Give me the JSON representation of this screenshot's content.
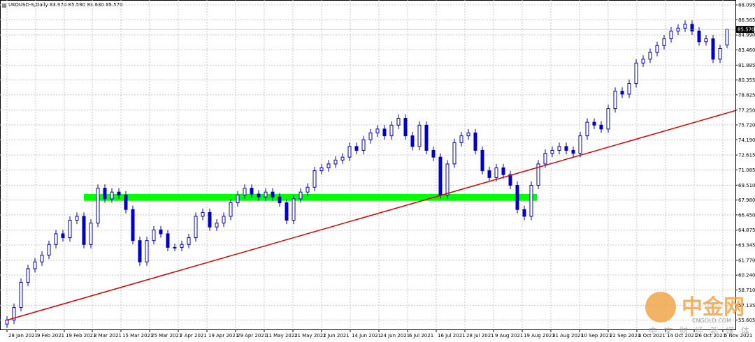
{
  "chart_data": {
    "type": "candlestick",
    "title": "UKOUSD-S,Daily 83.970 85.590 83.630 85.570",
    "open": [
      55.2,
      55.6,
      56.9,
      59.5,
      60.9,
      61.6,
      62.3,
      63.4,
      64.5,
      64.1,
      65.9,
      66.3,
      63.4,
      65.6,
      69.2,
      68.1,
      68.8,
      68.5,
      67.0,
      63.8,
      61.6,
      63.8,
      64.9,
      64.5,
      63.1,
      63.1,
      63.4,
      64.1,
      66.3,
      66.7,
      65.2,
      65.6,
      66.3,
      67.7,
      68.5,
      69.2,
      68.6,
      68.3,
      68.8,
      68.3,
      67.7,
      65.9,
      68.1,
      68.8,
      69.3,
      71.0,
      71.3,
      71.7,
      72.1,
      72.4,
      73.5,
      73.1,
      74.2,
      74.9,
      75.3,
      74.6,
      75.7,
      76.4,
      74.6,
      73.5,
      75.7,
      73.1,
      72.4,
      68.5,
      71.7,
      73.9,
      74.6,
      74.9,
      73.1,
      71.0,
      70.3,
      71.3,
      70.6,
      69.5,
      67.0,
      66.3,
      69.5,
      71.7,
      72.8,
      73.1,
      73.5,
      73.1,
      72.8,
      74.6,
      76.0,
      75.7,
      75.3,
      77.4,
      79.2,
      78.9,
      80.0,
      82.1,
      82.5,
      83.2,
      83.9,
      84.6,
      85.4,
      85.7,
      86.1,
      85.4,
      84.3,
      84.6,
      82.5,
      83.97
    ],
    "high": [
      56.0,
      57.3,
      59.9,
      61.3,
      62.0,
      62.7,
      63.8,
      64.9,
      64.9,
      66.3,
      66.7,
      66.7,
      66.0,
      69.6,
      69.6,
      69.2,
      69.2,
      68.9,
      67.4,
      64.2,
      64.2,
      65.3,
      65.3,
      64.9,
      63.5,
      63.8,
      64.5,
      66.7,
      67.1,
      67.1,
      66.0,
      66.7,
      68.1,
      68.9,
      69.6,
      69.6,
      69.0,
      69.2,
      69.2,
      68.7,
      68.1,
      68.5,
      69.2,
      69.7,
      71.4,
      71.7,
      72.1,
      72.5,
      72.8,
      73.9,
      73.9,
      74.6,
      75.3,
      75.7,
      75.7,
      76.1,
      76.8,
      76.8,
      75.0,
      76.1,
      76.1,
      73.5,
      72.8,
      72.1,
      74.3,
      75.0,
      75.3,
      75.3,
      73.5,
      71.4,
      71.7,
      71.7,
      71.0,
      69.9,
      67.4,
      69.9,
      72.1,
      73.2,
      73.5,
      73.9,
      73.9,
      73.5,
      75.0,
      76.4,
      76.4,
      76.1,
      77.8,
      79.6,
      79.6,
      80.4,
      82.5,
      82.9,
      83.6,
      84.3,
      85.0,
      85.8,
      86.1,
      86.5,
      86.5,
      85.8,
      85.0,
      85.0,
      84.0,
      85.59
    ],
    "low": [
      54.8,
      55.2,
      56.5,
      59.1,
      60.5,
      61.2,
      61.9,
      63.0,
      63.7,
      63.7,
      65.5,
      63.0,
      63.0,
      65.2,
      67.7,
      67.7,
      68.1,
      66.6,
      63.4,
      61.2,
      61.2,
      63.4,
      64.1,
      62.7,
      62.7,
      62.7,
      63.0,
      63.7,
      65.9,
      64.8,
      64.8,
      65.2,
      65.9,
      67.3,
      68.1,
      68.2,
      67.9,
      67.9,
      67.9,
      67.3,
      65.5,
      65.5,
      67.7,
      68.4,
      68.9,
      70.6,
      70.9,
      71.3,
      71.7,
      72.0,
      72.7,
      72.7,
      73.8,
      74.5,
      74.2,
      74.2,
      75.3,
      74.2,
      73.1,
      73.1,
      72.7,
      72.0,
      68.1,
      68.1,
      71.3,
      73.5,
      74.2,
      72.7,
      70.6,
      69.9,
      69.9,
      70.2,
      69.1,
      66.6,
      65.9,
      65.9,
      69.1,
      71.3,
      72.4,
      72.7,
      72.7,
      72.4,
      72.4,
      74.2,
      75.3,
      74.9,
      74.9,
      77.0,
      78.5,
      78.5,
      79.6,
      81.7,
      82.1,
      82.8,
      83.5,
      84.2,
      85.0,
      85.3,
      85.0,
      83.9,
      83.9,
      82.1,
      82.1,
      83.63
    ],
    "close": [
      55.6,
      56.9,
      59.5,
      60.9,
      61.6,
      62.3,
      63.4,
      64.5,
      64.1,
      65.9,
      66.3,
      63.4,
      65.6,
      69.2,
      68.1,
      68.8,
      68.5,
      67.0,
      63.8,
      61.6,
      63.8,
      64.9,
      64.5,
      63.1,
      63.1,
      63.4,
      64.1,
      66.3,
      66.7,
      65.2,
      65.6,
      66.3,
      67.7,
      68.5,
      69.2,
      68.6,
      68.3,
      68.8,
      68.3,
      67.7,
      65.9,
      68.1,
      68.8,
      69.3,
      71.0,
      71.3,
      71.7,
      72.1,
      72.4,
      73.5,
      73.1,
      74.2,
      74.9,
      75.3,
      74.6,
      75.7,
      76.4,
      74.6,
      73.5,
      75.7,
      73.1,
      72.4,
      68.5,
      71.7,
      73.9,
      74.6,
      74.9,
      73.1,
      71.0,
      70.3,
      71.3,
      70.6,
      69.5,
      67.0,
      66.3,
      69.5,
      71.7,
      72.8,
      73.1,
      73.5,
      73.1,
      72.8,
      74.6,
      76.0,
      75.7,
      75.3,
      77.4,
      79.2,
      78.9,
      80.0,
      82.1,
      82.5,
      83.2,
      83.9,
      84.6,
      85.4,
      85.7,
      86.1,
      85.4,
      84.3,
      84.6,
      82.5,
      83.6,
      85.57
    ],
    "color": "#0000c8",
    "xlim": [
      -1,
      104.2
    ],
    "xticks": [
      {
        "value": 0,
        "label": "28 Jan 2021"
      },
      {
        "value": 4.1,
        "label": "9 Feb 2021"
      },
      {
        "value": 8.2,
        "label": "19 Feb 2021"
      },
      {
        "value": 12.2,
        "label": "3 Mar 2021"
      },
      {
        "value": 16.3,
        "label": "15 Mar 2021"
      },
      {
        "value": 20.4,
        "label": "25 Mar 2021"
      },
      {
        "value": 24.5,
        "label": "7 Apr 2021"
      },
      {
        "value": 28.6,
        "label": "19 Apr 2021"
      },
      {
        "value": 32.7,
        "label": "29 Apr 2021"
      },
      {
        "value": 36.8,
        "label": "11 May 2021"
      },
      {
        "value": 40.9,
        "label": "21 May 2021"
      },
      {
        "value": 45.0,
        "label": "2 Jun 2021"
      },
      {
        "value": 49.1,
        "label": "14 Jun 2021"
      },
      {
        "value": 53.2,
        "label": "24 Jun 2021"
      },
      {
        "value": 57.3,
        "label": "6 Jul 2021"
      },
      {
        "value": 61.4,
        "label": "16 Jul 2021"
      },
      {
        "value": 65.5,
        "label": "28 Jul 2021"
      },
      {
        "value": 69.6,
        "label": "9 Aug 2021"
      },
      {
        "value": 73.7,
        "label": "19 Aug 2021"
      },
      {
        "value": 77.8,
        "label": "31 Aug 2021"
      },
      {
        "value": 81.9,
        "label": "10 Sep 2021"
      },
      {
        "value": 86.0,
        "label": "22 Sep 2021"
      },
      {
        "value": 90.1,
        "label": "4 Oct 2021"
      },
      {
        "value": 94.2,
        "label": "14 Oct 2021"
      },
      {
        "value": 98.3,
        "label": "26 Oct 2021"
      },
      {
        "value": 102.4,
        "label": "5 Nov 2021"
      }
    ],
    "ylim": [
      54.64,
      88.6
    ],
    "yticks": [
      {
        "value": 88.095,
        "label": "88.095"
      },
      {
        "value": 86.565,
        "label": "86.565"
      },
      {
        "value": 84.99,
        "label": "84.990"
      },
      {
        "value": 83.46,
        "label": "83.460"
      },
      {
        "value": 81.885,
        "label": "81.885"
      },
      {
        "value": 80.355,
        "label": "80.355"
      },
      {
        "value": 78.825,
        "label": "78.825"
      },
      {
        "value": 77.25,
        "label": "77.250"
      },
      {
        "value": 75.72,
        "label": "75.720"
      },
      {
        "value": 74.19,
        "label": "74.190"
      },
      {
        "value": 72.615,
        "label": "72.615"
      },
      {
        "value": 71.085,
        "label": "71.085"
      },
      {
        "value": 69.51,
        "label": "69.510"
      },
      {
        "value": 67.98,
        "label": "67.980"
      },
      {
        "value": 66.45,
        "label": "66.450"
      },
      {
        "value": 64.875,
        "label": "64.875"
      },
      {
        "value": 63.345,
        "label": "63.345"
      },
      {
        "value": 61.77,
        "label": "61.770"
      },
      {
        "value": 60.24,
        "label": "60.240"
      },
      {
        "value": 58.71,
        "label": "58.710"
      },
      {
        "value": 57.135,
        "label": "57.135"
      },
      {
        "value": 55.605,
        "label": "55.605"
      }
    ],
    "grid": true,
    "last_price": {
      "value": 85.57,
      "label": "85.570"
    },
    "zone": {
      "x": [
        11,
        75.8
      ],
      "y": [
        67.9,
        68.6
      ],
      "color": "#00ff00"
    },
    "trendline": {
      "x": [
        0,
        104.2
      ],
      "y": [
        55.6,
        77.2
      ],
      "color": "#e00000"
    },
    "watermark": [
      "中金网",
      "CNGOLD.COM",
      "中文财经新媒体"
    ]
  }
}
